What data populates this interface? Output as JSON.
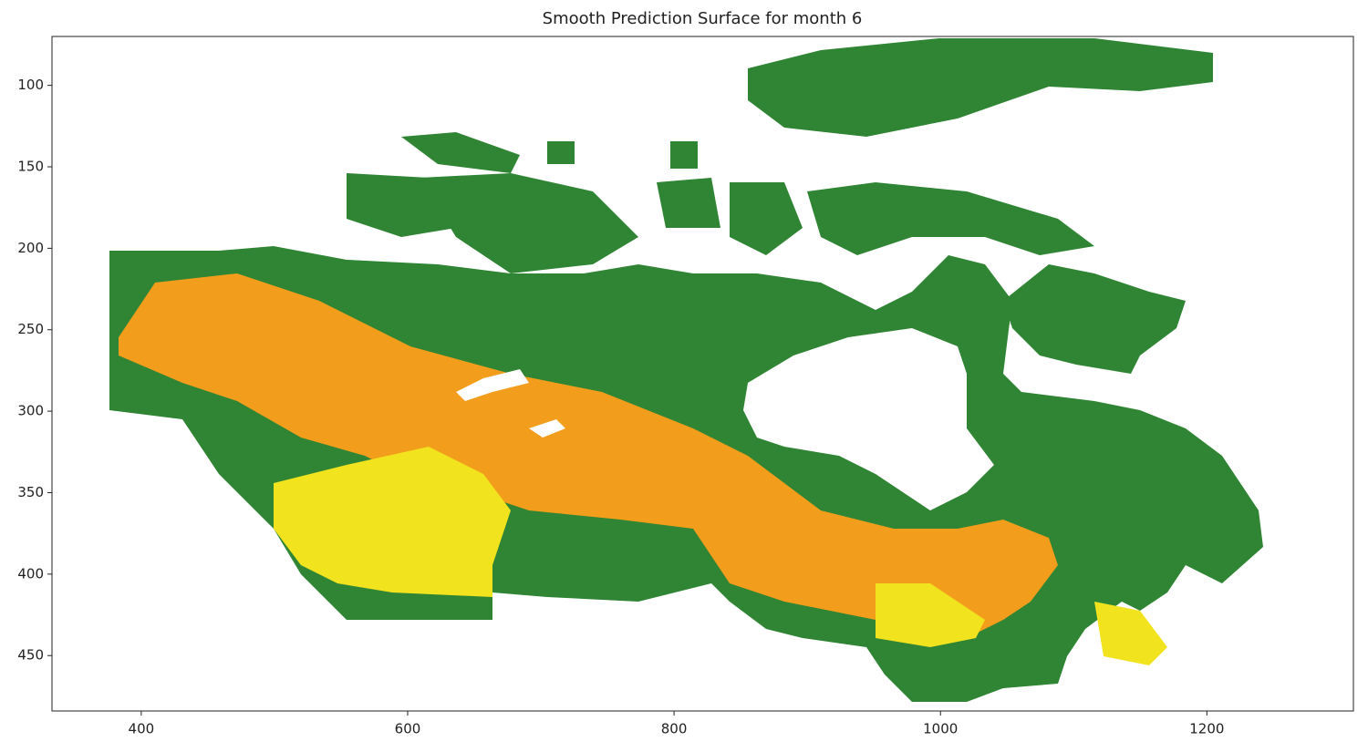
{
  "chart_data": {
    "type": "image",
    "title": "Smooth Prediction Surface for month 6",
    "xlim": [
      333,
      1310
    ],
    "xticks": [
      400,
      600,
      800,
      1000,
      1200
    ],
    "ylim": [
      484,
      70
    ],
    "yticks": [
      100,
      150,
      200,
      250,
      300,
      350,
      400,
      450
    ]
  }
}
